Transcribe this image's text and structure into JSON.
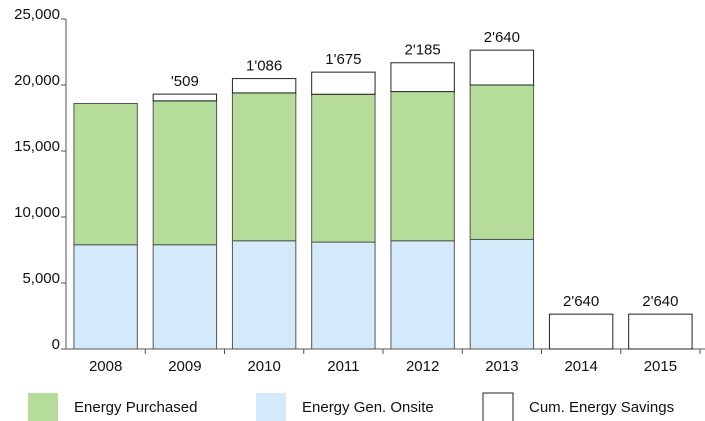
{
  "chart_data": {
    "type": "stacked_bar",
    "categories": [
      "2008",
      "2009",
      "2010",
      "2011",
      "2012",
      "2013",
      "2014",
      "2015"
    ],
    "series": [
      {
        "name": "Energy Gen. Onsite",
        "color": "#d4e9f9",
        "values": [
          7900,
          7900,
          8200,
          8100,
          8200,
          8300,
          0,
          0
        ]
      },
      {
        "name": "Energy Purchased",
        "color": "#b5dc98",
        "values": [
          10700,
          10900,
          11200,
          11200,
          11300,
          11700,
          0,
          0
        ]
      },
      {
        "name": "Cum. Energy Savings",
        "color": "#ffffff",
        "values": [
          null,
          509,
          1086,
          1675,
          2185,
          2640,
          2640,
          2640
        ],
        "value_labels": [
          null,
          "'509",
          "1'086",
          "1'675",
          "2'185",
          "2'640",
          "2'640",
          "2'640"
        ]
      }
    ],
    "legend_order": [
      1,
      0,
      2
    ],
    "ylim": [
      0,
      25000
    ],
    "yticks": [
      0,
      {
        "value": 5000,
        "label": "5,000"
      },
      {
        "value": 10000,
        "label": "10,000"
      },
      {
        "value": 15000,
        "label": "15,000"
      },
      {
        "value": 20000,
        "label": "20,000"
      },
      {
        "value": 25000,
        "label": "25,000"
      }
    ],
    "grid": false
  }
}
